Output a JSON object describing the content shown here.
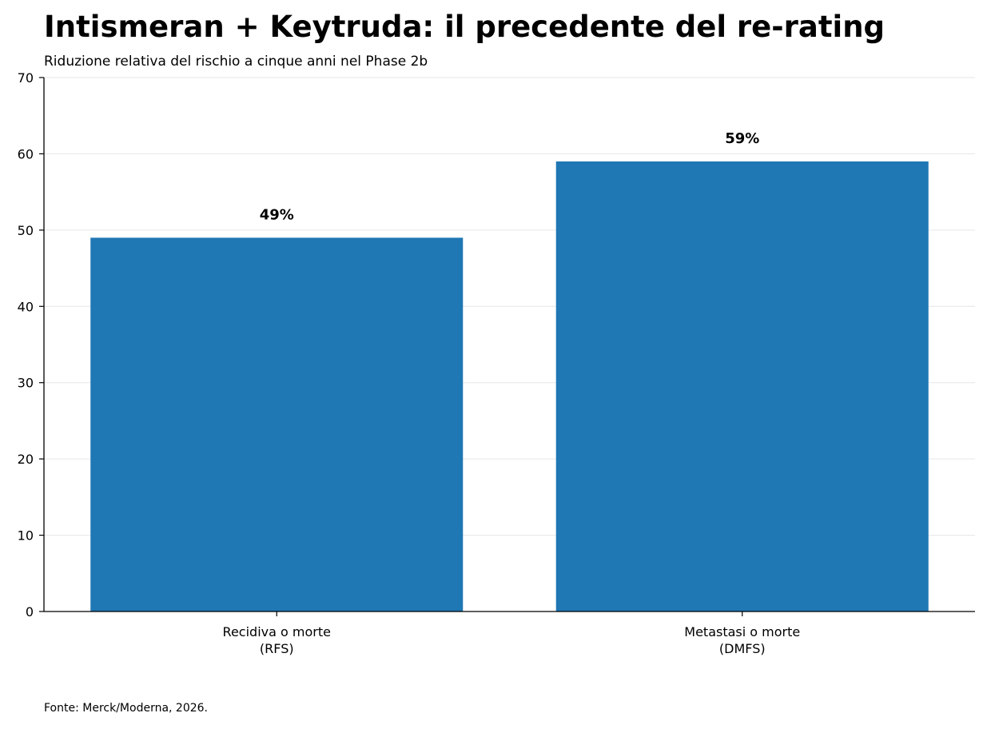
{
  "chart_data": {
    "type": "bar",
    "title": "Intismeran + Keytruda: il precedente del re-rating",
    "subtitle": "Riduzione relativa del rischio a cinque anni nel Phase 2b",
    "categories": [
      [
        "Recidiva o morte",
        "(RFS)"
      ],
      [
        "Metastasi o morte",
        "(DMFS)"
      ]
    ],
    "values": [
      49,
      59
    ],
    "data_labels": [
      "49%",
      "59%"
    ],
    "ylim": [
      0,
      70
    ],
    "yticks": [
      0,
      10,
      20,
      30,
      40,
      50,
      60,
      70
    ],
    "grid": "y",
    "bar_color": "#1f77b4",
    "source": "Fonte: Merck/Moderna, 2026."
  }
}
